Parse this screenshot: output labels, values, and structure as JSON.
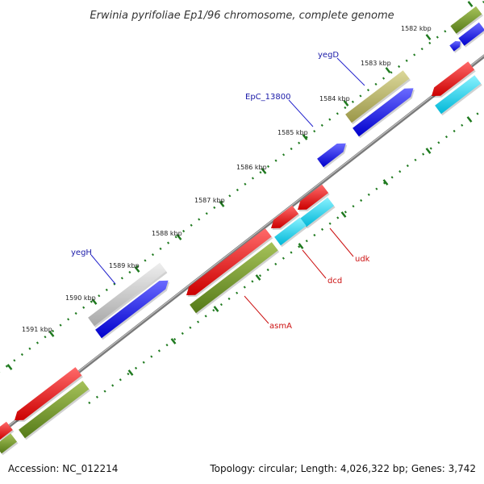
{
  "title": "Erwinia pyrifoliae Ep1/96 chromosome, complete genome",
  "accession": "Accession: NC_012214",
  "summary": "Topology: circular; Length: 4,026,322 bp; Genes: 3,742",
  "colors": {
    "backbone": "#808080",
    "blue": "#0000ee",
    "red": "#ee0000",
    "cyan": "#00d8f0",
    "olive": "#6b8e23",
    "khaki": "#b5b060",
    "grey": "#c0c0c0",
    "tick": "#1f7a1f"
  },
  "ticks": [
    {
      "label": "1582 kbp"
    },
    {
      "label": "1583 kbp"
    },
    {
      "label": "1584 kbp"
    },
    {
      "label": "1585 kbp"
    },
    {
      "label": "1586 kbp"
    },
    {
      "label": "1587 kbp"
    },
    {
      "label": "1588 kbp"
    },
    {
      "label": "1589 kbp"
    },
    {
      "label": "1590 kbp"
    },
    {
      "label": "1591 kbp"
    }
  ],
  "gene_labels": [
    {
      "name": "yegD",
      "strand": "forward"
    },
    {
      "name": "EpC_13800",
      "strand": "forward"
    },
    {
      "name": "yegH",
      "strand": "forward"
    },
    {
      "name": "udk",
      "strand": "reverse"
    },
    {
      "name": "dcd",
      "strand": "reverse"
    },
    {
      "name": "asmA",
      "strand": "reverse"
    }
  ]
}
